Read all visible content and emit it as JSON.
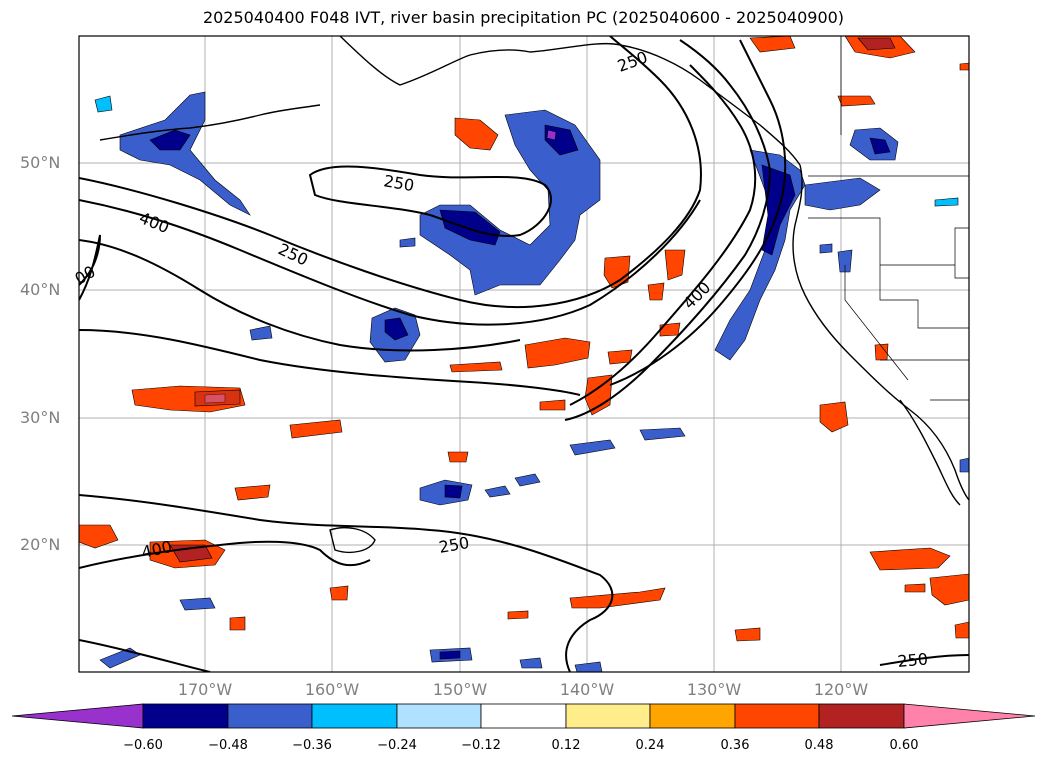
{
  "title": "2025040400 F048 IVT, river basin precipitation PC (2025040600 - 2025040900)",
  "map": {
    "lat_labels": [
      "50°N",
      "40°N",
      "30°N",
      "20°N"
    ],
    "lon_labels": [
      "170°W",
      "160°W",
      "150°W",
      "140°W",
      "130°W",
      "120°W"
    ],
    "contour_labels": [
      "250",
      "400",
      "250",
      "00",
      "400",
      "400",
      "250",
      "250",
      "250"
    ]
  },
  "colorbar": {
    "ticks": [
      "−0.60",
      "−0.48",
      "−0.36",
      "−0.24",
      "−0.12",
      "0.12",
      "0.24",
      "0.36",
      "0.48",
      "0.60"
    ],
    "colors": [
      "#9932CC",
      "#00008B",
      "#3A5FCD",
      "#00BFFF",
      "#B0E2FF",
      "#FFFFFF",
      "#FFEC8B",
      "#FFA500",
      "#FF4500",
      "#B22222",
      "#FF82AB"
    ]
  }
}
